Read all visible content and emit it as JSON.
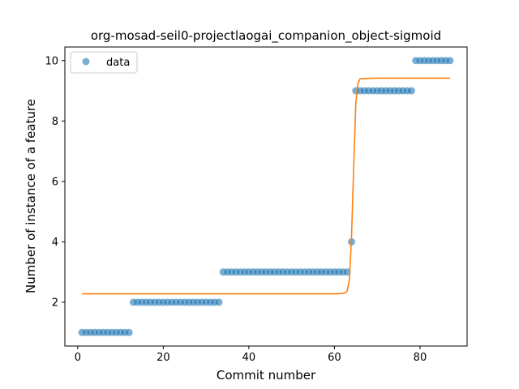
{
  "chart_data": {
    "type": "scatter",
    "title": "org-mosad-seil0-projectlaogai_companion_object-sigmoid",
    "xlabel": "Commit number",
    "ylabel": "Number of instance of a feature",
    "xlim": [
      -3,
      91
    ],
    "ylim": [
      0.55,
      10.45
    ],
    "xticks": [
      0,
      20,
      40,
      60,
      80
    ],
    "yticks": [
      2,
      4,
      6,
      8,
      10
    ],
    "grid": false,
    "legend": {
      "position": "top-left",
      "entries": [
        "data"
      ]
    },
    "colors": {
      "data": "#1f77b4",
      "fit": "#ff7f0e"
    },
    "series": [
      {
        "name": "data",
        "kind": "scatter",
        "x": [
          1,
          2,
          3,
          4,
          5,
          6,
          7,
          8,
          9,
          10,
          11,
          12,
          13,
          14,
          15,
          16,
          17,
          18,
          19,
          20,
          21,
          22,
          23,
          24,
          25,
          26,
          27,
          28,
          29,
          30,
          31,
          32,
          33,
          34,
          35,
          36,
          37,
          38,
          39,
          40,
          41,
          42,
          43,
          44,
          45,
          46,
          47,
          48,
          49,
          50,
          51,
          52,
          53,
          54,
          55,
          56,
          57,
          58,
          59,
          60,
          61,
          62,
          63,
          64,
          65,
          66,
          67,
          68,
          69,
          70,
          71,
          72,
          73,
          74,
          75,
          76,
          77,
          78,
          79,
          80,
          81,
          82,
          83,
          84,
          85,
          86,
          87
        ],
        "y": [
          1,
          1,
          1,
          1,
          1,
          1,
          1,
          1,
          1,
          1,
          1,
          1,
          2,
          2,
          2,
          2,
          2,
          2,
          2,
          2,
          2,
          2,
          2,
          2,
          2,
          2,
          2,
          2,
          2,
          2,
          2,
          2,
          2,
          3,
          3,
          3,
          3,
          3,
          3,
          3,
          3,
          3,
          3,
          3,
          3,
          3,
          3,
          3,
          3,
          3,
          3,
          3,
          3,
          3,
          3,
          3,
          3,
          3,
          3,
          3,
          3,
          3,
          3,
          4,
          9,
          9,
          9,
          9,
          9,
          9,
          9,
          9,
          9,
          9,
          9,
          9,
          9,
          9,
          10,
          10,
          10,
          10,
          10,
          10,
          10,
          10,
          10
        ]
      },
      {
        "name": "",
        "kind": "line",
        "x": [
          1,
          10,
          20,
          30,
          40,
          50,
          60,
          62,
          62.5,
          63,
          63.5,
          64,
          64.5,
          65,
          65.5,
          66,
          70,
          80,
          87
        ],
        "y": [
          2.28,
          2.28,
          2.28,
          2.28,
          2.28,
          2.28,
          2.28,
          2.29,
          2.31,
          2.38,
          2.75,
          4.2,
          6.5,
          8.6,
          9.25,
          9.4,
          9.42,
          9.42,
          9.42
        ]
      }
    ]
  }
}
